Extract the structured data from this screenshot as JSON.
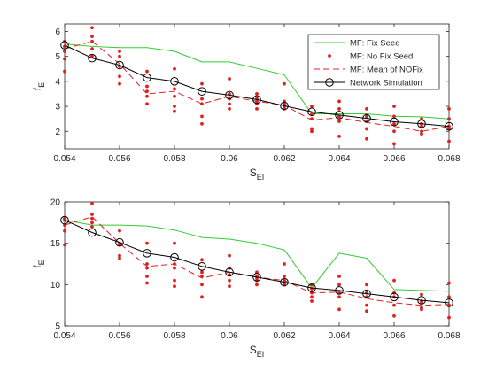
{
  "chart_data": [
    {
      "type": "line",
      "xlabel": "S",
      "xlabel_sub": "EI",
      "ylabel": "f",
      "ylabel_sub": "E",
      "xlim": [
        0.054,
        0.068
      ],
      "ylim": [
        1.3,
        6.3
      ],
      "x_ticks": [
        "0.054",
        "0.056",
        "0.058",
        "0.06",
        "0.062",
        "0.064",
        "0.066",
        "0.068"
      ],
      "y_ticks": [
        "2",
        "3",
        "4",
        "5",
        "6"
      ],
      "legend_position": "top-right",
      "series": [
        {
          "name": "MF: Fix Seed",
          "style": "solid",
          "color": "#33cc33",
          "x": [
            0.054,
            0.055,
            0.056,
            0.057,
            0.058,
            0.059,
            0.06,
            0.061,
            0.062,
            0.063,
            0.064,
            0.065,
            0.066,
            0.067,
            0.068
          ],
          "y": [
            5.5,
            5.4,
            5.35,
            5.35,
            5.2,
            4.78,
            4.78,
            4.52,
            4.26,
            2.7,
            2.7,
            2.7,
            2.6,
            2.58,
            2.5
          ]
        },
        {
          "name": "MF: No Fix Seed",
          "style": "dots",
          "color": "#e02020",
          "points": [
            [
              0.054,
              5.6
            ],
            [
              0.054,
              4.9
            ],
            [
              0.054,
              4.4
            ],
            [
              0.054,
              5.4
            ],
            [
              0.054,
              5.2
            ],
            [
              0.055,
              6.15
            ],
            [
              0.055,
              5.8
            ],
            [
              0.055,
              5.3
            ],
            [
              0.055,
              5.6
            ],
            [
              0.055,
              5.0
            ],
            [
              0.056,
              5.2
            ],
            [
              0.056,
              5.0
            ],
            [
              0.056,
              4.2
            ],
            [
              0.056,
              3.9
            ],
            [
              0.056,
              4.6
            ],
            [
              0.057,
              4.4
            ],
            [
              0.057,
              3.8
            ],
            [
              0.057,
              3.4
            ],
            [
              0.057,
              3.1
            ],
            [
              0.057,
              3.6
            ],
            [
              0.058,
              4.5
            ],
            [
              0.058,
              3.4
            ],
            [
              0.058,
              3.0
            ],
            [
              0.058,
              2.8
            ],
            [
              0.058,
              3.7
            ],
            [
              0.059,
              3.9
            ],
            [
              0.059,
              3.3
            ],
            [
              0.059,
              2.6
            ],
            [
              0.059,
              2.3
            ],
            [
              0.059,
              3.1
            ],
            [
              0.06,
              4.1
            ],
            [
              0.06,
              3.5
            ],
            [
              0.06,
              3.1
            ],
            [
              0.06,
              2.9
            ],
            [
              0.06,
              3.3
            ],
            [
              0.061,
              3.5
            ],
            [
              0.061,
              3.1
            ],
            [
              0.061,
              2.9
            ],
            [
              0.061,
              3.3
            ],
            [
              0.061,
              3.2
            ],
            [
              0.062,
              3.9
            ],
            [
              0.062,
              3.2
            ],
            [
              0.062,
              2.9
            ],
            [
              0.062,
              3.0
            ],
            [
              0.062,
              3.1
            ],
            [
              0.063,
              3.0
            ],
            [
              0.063,
              2.5
            ],
            [
              0.063,
              2.0
            ],
            [
              0.063,
              2.1
            ],
            [
              0.063,
              2.7
            ],
            [
              0.064,
              3.2
            ],
            [
              0.064,
              2.6
            ],
            [
              0.064,
              2.4
            ],
            [
              0.064,
              1.8
            ],
            [
              0.064,
              2.9
            ],
            [
              0.065,
              2.9
            ],
            [
              0.065,
              2.4
            ],
            [
              0.065,
              2.1
            ],
            [
              0.065,
              1.7
            ],
            [
              0.065,
              2.6
            ],
            [
              0.066,
              3.0
            ],
            [
              0.066,
              2.3
            ],
            [
              0.066,
              2.0
            ],
            [
              0.066,
              1.5
            ],
            [
              0.066,
              2.6
            ],
            [
              0.067,
              2.5
            ],
            [
              0.067,
              2.2
            ],
            [
              0.067,
              2.0
            ],
            [
              0.067,
              1.9
            ],
            [
              0.067,
              2.3
            ],
            [
              0.068,
              2.9
            ],
            [
              0.068,
              2.5
            ],
            [
              0.068,
              2.1
            ],
            [
              0.068,
              1.6
            ],
            [
              0.068,
              2.2
            ]
          ]
        },
        {
          "name": "MF: Mean of NOFix",
          "style": "dashed",
          "color": "#e02020",
          "x": [
            0.054,
            0.055,
            0.056,
            0.057,
            0.058,
            0.059,
            0.06,
            0.061,
            0.062,
            0.063,
            0.064,
            0.065,
            0.066,
            0.067,
            0.068
          ],
          "y": [
            5.3,
            5.6,
            4.7,
            3.5,
            3.6,
            3.1,
            3.4,
            3.2,
            3.05,
            2.45,
            2.55,
            2.35,
            2.2,
            2.0,
            2.2
          ]
        },
        {
          "name": "Network Simulation",
          "style": "solid-circle",
          "color": "#000000",
          "x": [
            0.054,
            0.055,
            0.056,
            0.057,
            0.058,
            0.059,
            0.06,
            0.061,
            0.062,
            0.063,
            0.064,
            0.065,
            0.066,
            0.067,
            0.068
          ],
          "y": [
            5.45,
            4.93,
            4.65,
            4.15,
            4.0,
            3.6,
            3.45,
            3.27,
            3.02,
            2.78,
            2.65,
            2.52,
            2.38,
            2.3,
            2.2
          ]
        }
      ]
    },
    {
      "type": "line",
      "xlabel": "S",
      "xlabel_sub": "EI",
      "ylabel": "f",
      "ylabel_sub": "E",
      "xlim": [
        0.054,
        0.068
      ],
      "ylim": [
        5,
        20
      ],
      "x_ticks": [
        "0.054",
        "0.056",
        "0.058",
        "0.06",
        "0.062",
        "0.064",
        "0.066",
        "0.068"
      ],
      "y_ticks": [
        "5",
        "10",
        "15",
        "20"
      ],
      "series": [
        {
          "name": "MF: Fix Seed",
          "style": "solid",
          "color": "#33cc33",
          "x": [
            0.054,
            0.055,
            0.056,
            0.057,
            0.058,
            0.059,
            0.06,
            0.061,
            0.062,
            0.063,
            0.064,
            0.065,
            0.066,
            0.067,
            0.068
          ],
          "y": [
            17.8,
            17.2,
            17.2,
            17.1,
            16.6,
            15.7,
            15.5,
            15.0,
            14.2,
            9.6,
            13.8,
            13.2,
            9.4,
            9.3,
            9.2
          ]
        },
        {
          "name": "MF: No Fix Seed",
          "style": "dots",
          "color": "#e02020",
          "points": [
            [
              0.054,
              17.8
            ],
            [
              0.054,
              16.5
            ],
            [
              0.054,
              14.8
            ],
            [
              0.054,
              18.0
            ],
            [
              0.054,
              17.2
            ],
            [
              0.055,
              19.8
            ],
            [
              0.055,
              18.5
            ],
            [
              0.055,
              17.5
            ],
            [
              0.055,
              17.0
            ],
            [
              0.055,
              18.0
            ],
            [
              0.056,
              16.5
            ],
            [
              0.056,
              15.0
            ],
            [
              0.056,
              13.5
            ],
            [
              0.056,
              13.2
            ],
            [
              0.056,
              14.8
            ],
            [
              0.057,
              15.0
            ],
            [
              0.057,
              12.5
            ],
            [
              0.057,
              11.0
            ],
            [
              0.057,
              10.2
            ],
            [
              0.057,
              12.0
            ],
            [
              0.058,
              15.0
            ],
            [
              0.058,
              12.0
            ],
            [
              0.058,
              10.5
            ],
            [
              0.058,
              9.8
            ],
            [
              0.058,
              12.5
            ],
            [
              0.059,
              13.0
            ],
            [
              0.059,
              11.5
            ],
            [
              0.059,
              10.0
            ],
            [
              0.059,
              8.5
            ],
            [
              0.059,
              11.0
            ],
            [
              0.06,
              13.5
            ],
            [
              0.06,
              12.0
            ],
            [
              0.06,
              10.5
            ],
            [
              0.06,
              9.8
            ],
            [
              0.06,
              11.2
            ],
            [
              0.061,
              11.5
            ],
            [
              0.061,
              10.8
            ],
            [
              0.061,
              10.0
            ],
            [
              0.061,
              10.5
            ],
            [
              0.061,
              11.0
            ],
            [
              0.062,
              12.5
            ],
            [
              0.062,
              11.0
            ],
            [
              0.062,
              10.2
            ],
            [
              0.062,
              10.0
            ],
            [
              0.062,
              10.5
            ],
            [
              0.063,
              10.0
            ],
            [
              0.063,
              9.0
            ],
            [
              0.063,
              8.0
            ],
            [
              0.063,
              8.5
            ],
            [
              0.063,
              9.5
            ],
            [
              0.064,
              11.0
            ],
            [
              0.064,
              9.0
            ],
            [
              0.064,
              8.5
            ],
            [
              0.064,
              7.0
            ],
            [
              0.064,
              10.0
            ],
            [
              0.065,
              10.0
            ],
            [
              0.065,
              8.5
            ],
            [
              0.065,
              7.5
            ],
            [
              0.065,
              6.8
            ],
            [
              0.065,
              9.0
            ],
            [
              0.066,
              10.5
            ],
            [
              0.066,
              8.5
            ],
            [
              0.066,
              7.5
            ],
            [
              0.066,
              6.2
            ],
            [
              0.066,
              9.0
            ],
            [
              0.067,
              8.8
            ],
            [
              0.067,
              7.8
            ],
            [
              0.067,
              7.2
            ],
            [
              0.067,
              7.0
            ],
            [
              0.067,
              8.0
            ],
            [
              0.068,
              10.2
            ],
            [
              0.068,
              8.5
            ],
            [
              0.068,
              7.5
            ],
            [
              0.068,
              6.0
            ],
            [
              0.068,
              7.5
            ]
          ]
        },
        {
          "name": "MF: Mean of NOFix",
          "style": "dashed",
          "color": "#e02020",
          "x": [
            0.054,
            0.055,
            0.056,
            0.057,
            0.058,
            0.059,
            0.06,
            0.061,
            0.062,
            0.063,
            0.064,
            0.065,
            0.066,
            0.067,
            0.068
          ],
          "y": [
            17.2,
            18.2,
            15.0,
            12.2,
            12.5,
            10.8,
            11.5,
            10.9,
            10.5,
            9.0,
            9.1,
            8.3,
            7.8,
            7.5,
            7.6
          ]
        },
        {
          "name": "Network Simulation",
          "style": "solid-circle",
          "color": "#000000",
          "x": [
            0.054,
            0.055,
            0.056,
            0.057,
            0.058,
            0.059,
            0.06,
            0.061,
            0.062,
            0.063,
            0.064,
            0.065,
            0.066,
            0.067,
            0.068
          ],
          "y": [
            17.8,
            16.3,
            15.1,
            13.8,
            13.3,
            12.2,
            11.5,
            10.9,
            10.3,
            9.6,
            9.3,
            8.9,
            8.5,
            8.1,
            7.8
          ]
        }
      ]
    }
  ]
}
